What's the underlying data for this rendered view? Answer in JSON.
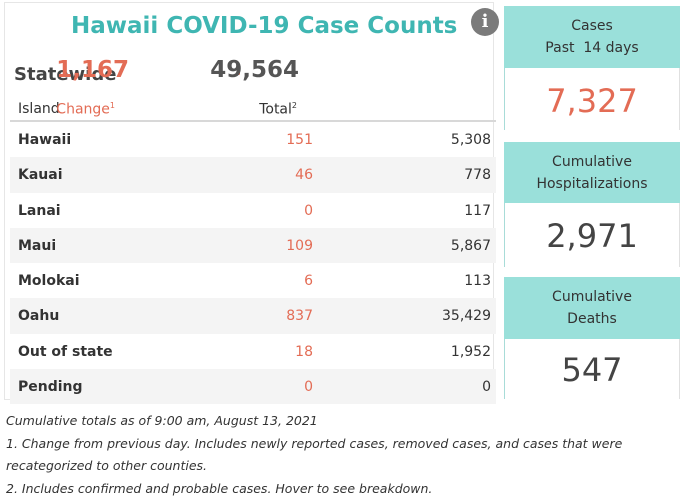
{
  "title": "Hawaii COVID-19 Case Counts",
  "info_icon": "info-icon",
  "statewide": {
    "label": "Statewide",
    "change": "1,167",
    "total": "49,564"
  },
  "table": {
    "headers": {
      "island": "Island",
      "change": "Change",
      "change_note": "1",
      "total": "Total",
      "total_note": "2"
    },
    "rows": [
      {
        "island": "Hawaii",
        "change": "151",
        "total": "5,308"
      },
      {
        "island": "Kauai",
        "change": "46",
        "total": "778"
      },
      {
        "island": "Lanai",
        "change": "0",
        "total": "117"
      },
      {
        "island": "Maui",
        "change": "109",
        "total": "5,867"
      },
      {
        "island": "Molokai",
        "change": "6",
        "total": "113"
      },
      {
        "island": "Oahu",
        "change": "837",
        "total": "35,429"
      },
      {
        "island": "Out of state",
        "change": "18",
        "total": "1,952"
      },
      {
        "island": "Pending",
        "change": "0",
        "total": "0"
      }
    ]
  },
  "footnotes": {
    "line1": "Cumulative totals as of 9:00 am, August 13, 2021",
    "line2": "1. Change from previous day. Includes newly reported cases, removed cases, and cases that were",
    "line3": "recategorized to other counties.",
    "line4": "2. Includes confirmed and probable cases. Hover to see breakdown."
  },
  "kpis": {
    "cases": {
      "line1": "Cases",
      "line2": "Past  14 days",
      "value": "7,327"
    },
    "hospitalizations": {
      "line1": "Cumulative",
      "line2": "Hospitalizations",
      "value": "2,971"
    },
    "deaths": {
      "line1": "Cumulative",
      "line2": "Deaths",
      "value": "547"
    }
  },
  "colors": {
    "accent": "#3fb6b2",
    "change": "#e36c55",
    "kpi_header": "#9ae0da"
  }
}
